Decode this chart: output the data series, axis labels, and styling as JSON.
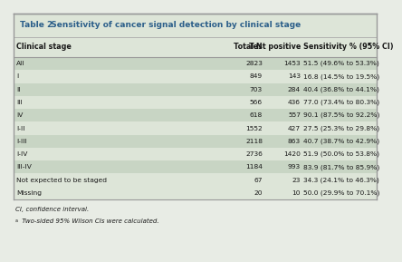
{
  "title_part1": "Table 2.",
  "title_part2": "  Sensitivity of cancer signal detection by clinical stage",
  "headers": [
    "Clinical stage",
    "Total N",
    "Test positive",
    "Sensitivity % (95% CI)ᵃ"
  ],
  "rows": [
    [
      "All",
      "2823",
      "1453",
      "51.5 (49.6% to 53.3%)"
    ],
    [
      "I",
      "849",
      "143",
      "16.8 (14.5% to 19.5%)"
    ],
    [
      "II",
      "703",
      "284",
      "40.4 (36.8% to 44.1%)"
    ],
    [
      "III",
      "566",
      "436",
      "77.0 (73.4% to 80.3%)"
    ],
    [
      "IV",
      "618",
      "557",
      "90.1 (87.5% to 92.2%)"
    ],
    [
      "I-II",
      "1552",
      "427",
      "27.5 (25.3% to 29.8%)"
    ],
    [
      "I-III",
      "2118",
      "863",
      "40.7 (38.7% to 42.9%)"
    ],
    [
      "I-IV",
      "2736",
      "1420",
      "51.9 (50.0% to 53.8%)"
    ],
    [
      "III-IV",
      "1184",
      "993",
      "83.9 (81.7% to 85.9%)"
    ],
    [
      "Not expected to be staged",
      "67",
      "23",
      "34.3 (24.1% to 46.3%)"
    ],
    [
      "Missing",
      "20",
      "10",
      "50.0 (29.9% to 70.1%)"
    ]
  ],
  "shaded_rows": [
    0,
    2,
    4,
    6,
    8
  ],
  "footer_line1": "CI, confidence interval.",
  "footer_line2": " Two-sided 95% Wilson CIs were calculated.",
  "bg_color": "#e8ece5",
  "shaded_color": "#c8d5c4",
  "unshaded_color": "#dde5d8",
  "title_bg": "#dde5d8",
  "border_color": "#999999",
  "line_color": "#aaaaaa",
  "title_color": "#2c5f8a",
  "text_color": "#1a1a1a",
  "header_fontsize": 5.8,
  "data_fontsize": 5.4,
  "footer_fontsize": 5.0
}
